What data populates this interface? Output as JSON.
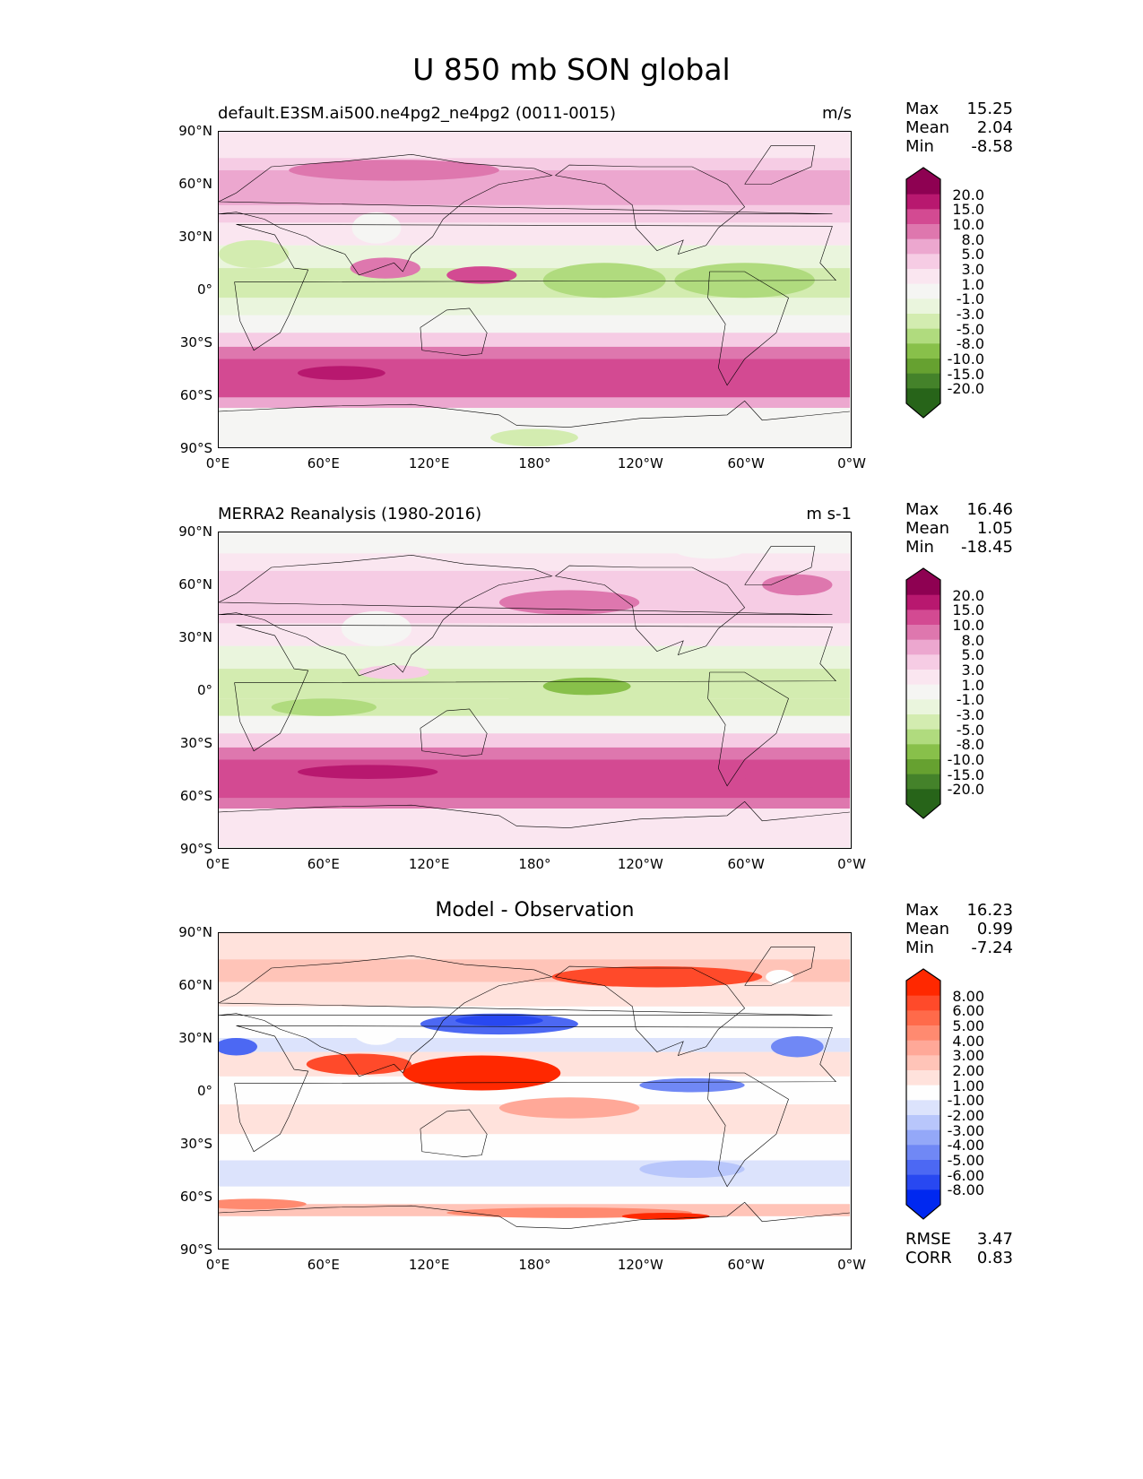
{
  "title": "U 850 mb SON global",
  "panels": [
    {
      "title": "default.E3SM.ai500.ne4pg2_ne4pg2 (0011-0015)",
      "units": "m/s",
      "stats": {
        "max_label": "Max",
        "max": "15.25",
        "mean_label": "Mean",
        "mean": "2.04",
        "min_label": "Min",
        "min": "-8.58"
      }
    },
    {
      "title": "MERRA2 Reanalysis (1980-2016)",
      "units": "m s-1",
      "stats": {
        "max_label": "Max",
        "max": "16.46",
        "mean_label": "Mean",
        "mean": "1.05",
        "min_label": "Min",
        "min": "-18.45"
      }
    },
    {
      "title": "Model - Observation",
      "units": "",
      "stats": {
        "max_label": "Max",
        "max": "16.23",
        "mean_label": "Mean",
        "mean": "0.99",
        "min_label": "Min",
        "min": "-7.24"
      },
      "extra": {
        "rmse_label": "RMSE",
        "rmse": "3.47",
        "corr_label": "CORR",
        "corr": "0.83"
      }
    }
  ],
  "lat_ticks": [
    "90°N",
    "60°N",
    "30°N",
    "0°",
    "30°S",
    "60°S",
    "90°S"
  ],
  "lon_ticks": [
    "0°E",
    "60°E",
    "120°E",
    "180°",
    "120°W",
    "60°W",
    "0°W"
  ],
  "chart_data": [
    {
      "type": "heatmap",
      "title": "default.E3SM.ai500.ne4pg2_ne4pg2 (0011-0015)",
      "units": "m/s",
      "xlim": [
        0,
        360
      ],
      "ylim": [
        -90,
        90
      ],
      "colorbar_levels": [
        "20.0",
        "15.0",
        "10.0",
        "8.0",
        "5.0",
        "3.0",
        "1.0",
        "-1.0",
        "-3.0",
        "-5.0",
        "-8.0",
        "-10.0",
        "-15.0",
        "-20.0"
      ],
      "colors": [
        "#8e0152",
        "#b8186f",
        "#d34a92",
        "#de77ae",
        "#eca7cf",
        "#f6cce4",
        "#fae6f0",
        "#f5f5f3",
        "#eaf5dd",
        "#d3ecb0",
        "#b0db7e",
        "#88c04a",
        "#66a130",
        "#44822a",
        "#276419"
      ]
    },
    {
      "type": "heatmap",
      "title": "MERRA2 Reanalysis (1980-2016)",
      "units": "m s-1",
      "xlim": [
        0,
        360
      ],
      "ylim": [
        -90,
        90
      ],
      "colorbar_levels": [
        "20.0",
        "15.0",
        "10.0",
        "8.0",
        "5.0",
        "3.0",
        "1.0",
        "-1.0",
        "-3.0",
        "-5.0",
        "-8.0",
        "-10.0",
        "-15.0",
        "-20.0"
      ],
      "colors": [
        "#8e0152",
        "#b8186f",
        "#d34a92",
        "#de77ae",
        "#eca7cf",
        "#f6cce4",
        "#fae6f0",
        "#f5f5f3",
        "#eaf5dd",
        "#d3ecb0",
        "#b0db7e",
        "#88c04a",
        "#66a130",
        "#44822a",
        "#276419"
      ]
    },
    {
      "type": "heatmap",
      "title": "Model - Observation",
      "xlim": [
        0,
        360
      ],
      "ylim": [
        -90,
        90
      ],
      "colorbar_levels": [
        "8.00",
        "6.00",
        "5.00",
        "4.00",
        "3.00",
        "2.00",
        "1.00",
        "-1.00",
        "-2.00",
        "-3.00",
        "-4.00",
        "-5.00",
        "-6.00",
        "-8.00"
      ],
      "colors": [
        "#ff2800",
        "#ff4a2a",
        "#ff6a4a",
        "#ff8a70",
        "#ffa898",
        "#ffc4b8",
        "#ffe2dc",
        "#fefefe",
        "#dce3fc",
        "#b8c6fb",
        "#94a8f8",
        "#7088f5",
        "#4c68f3",
        "#2848f1",
        "#0028f0"
      ]
    }
  ]
}
